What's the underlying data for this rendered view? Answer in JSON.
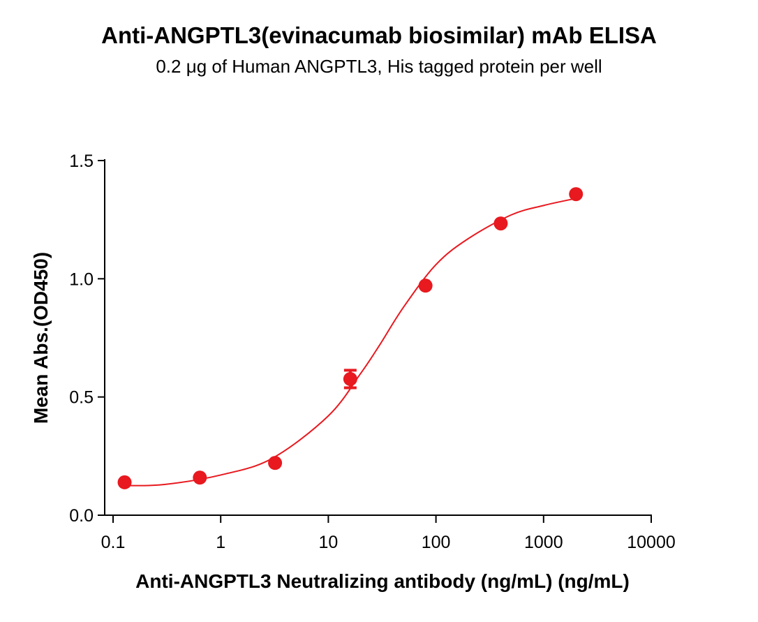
{
  "chart_data": {
    "type": "scatter",
    "title": "Anti-ANGPTL3(evinacumab biosimilar) mAb ELISA",
    "subtitle": "0.2 μg of Human ANGPTL3, His tagged protein per well",
    "x_label": "Anti-ANGPTL3 Neutralizing antibody (ng/mL) (ng/mL)",
    "y_label": "Mean Abs.(OD450)",
    "x_log": true,
    "xlim": [
      0.1,
      10000
    ],
    "xticks": [
      0.1,
      1,
      10,
      100,
      1000,
      10000
    ],
    "ylim": [
      0,
      1.5
    ],
    "yticks": [
      {
        "value": 0,
        "label": "0.0"
      },
      0.5,
      {
        "value": 1,
        "label": "1.0"
      },
      1.5
    ],
    "color": "#e8191f",
    "x": [
      0.128,
      0.64,
      3.2,
      16,
      80,
      400,
      2000
    ],
    "values": [
      0.139,
      0.159,
      0.221,
      0.576,
      0.971,
      1.234,
      1.358
    ],
    "errors": [
      null,
      null,
      null,
      0.037,
      null,
      null,
      null
    ],
    "fit_curve": {
      "x": [
        0.128,
        0.3,
        1,
        3,
        10,
        20,
        30,
        50,
        100,
        200,
        500,
        1000,
        2000
      ],
      "values": [
        0.125,
        0.13,
        0.17,
        0.24,
        0.42,
        0.6,
        0.72,
        0.88,
        1.06,
        1.17,
        1.27,
        1.31,
        1.34
      ]
    }
  }
}
